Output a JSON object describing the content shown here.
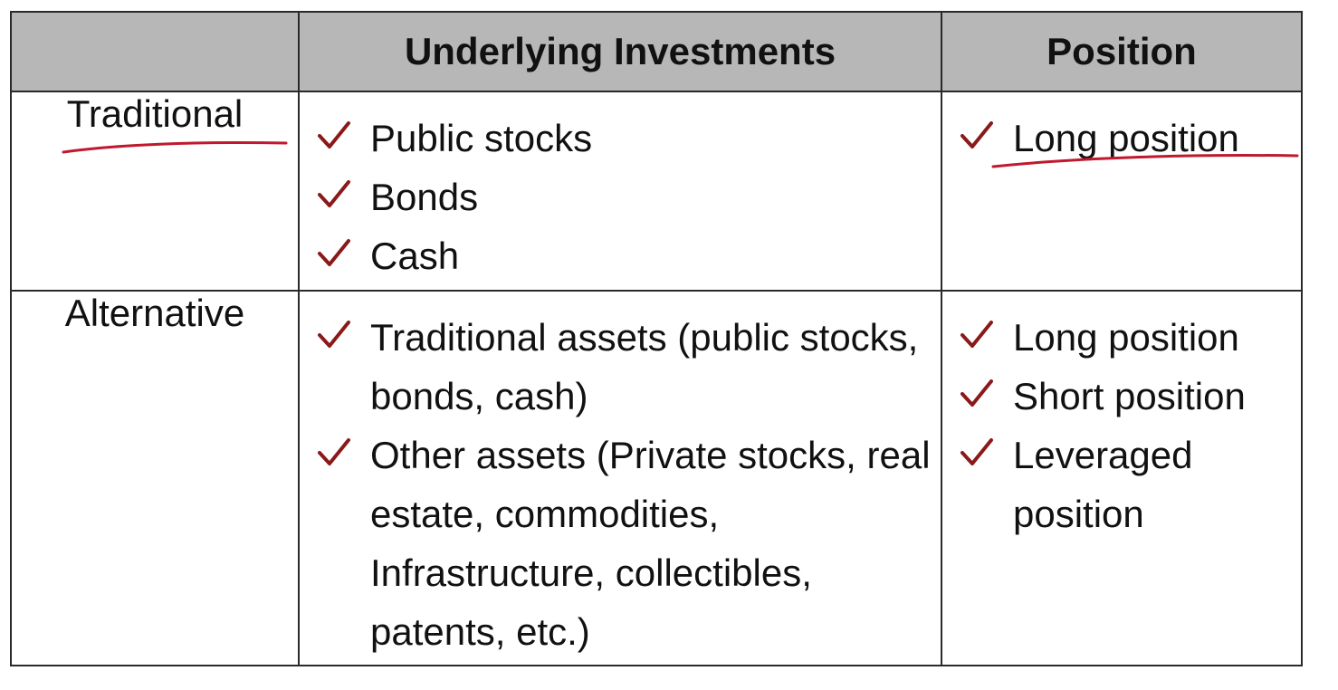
{
  "table": {
    "headers": [
      "",
      "Underlying Investments",
      "Position"
    ],
    "rows": [
      {
        "label": "Traditional",
        "investments": [
          "Public stocks",
          "Bonds",
          "Cash"
        ],
        "positions": [
          "Long position"
        ]
      },
      {
        "label": "Alternative",
        "investments": [
          "Traditional assets (public stocks, bonds, cash)",
          "Other assets (Private stocks, real estate, commodities, Infrastructure, collectibles, patents, etc.)"
        ],
        "positions": [
          "Long position",
          "Short position",
          "Leveraged position"
        ]
      }
    ]
  },
  "colors": {
    "header_fill": "#b7b7b7",
    "check_mark": "#8a1a1a",
    "annotation_ink": "#c0192e",
    "border": "#2a2a2a"
  },
  "icons": {
    "bullet": "check-mark-icon",
    "annotation": "handwritten-underline"
  }
}
